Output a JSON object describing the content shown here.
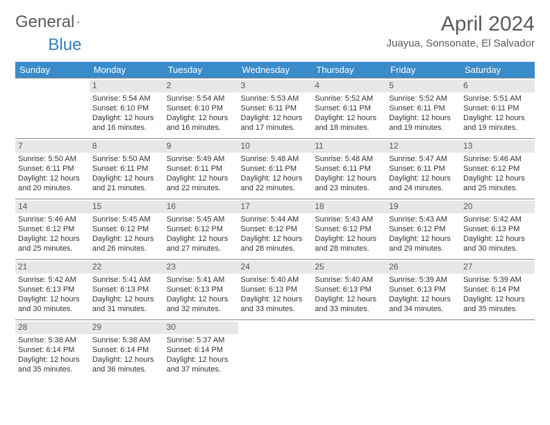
{
  "logo": {
    "word1": "General",
    "word2": "Blue"
  },
  "title": "April 2024",
  "subtitle": "Juayua, Sonsonate, El Salvador",
  "colors": {
    "header_bg": "#3a8bc9",
    "header_fg": "#ffffff",
    "daynum_bg": "#e7e7e7",
    "daynum_fg": "#555555",
    "row_border": "#888888",
    "body_text": "#333333",
    "title_color": "#5a5a5a",
    "logo_gray": "#5a5a5a",
    "logo_blue": "#2f7fbf"
  },
  "layout": {
    "columns": 7,
    "rows": 5,
    "start_weekday": "Sunday"
  },
  "weekdays": [
    "Sunday",
    "Monday",
    "Tuesday",
    "Wednesday",
    "Thursday",
    "Friday",
    "Saturday"
  ],
  "prefix": {
    "sunrise": "Sunrise: ",
    "sunset": "Sunset: ",
    "daylight": "Daylight: "
  },
  "days": [
    {
      "n": "",
      "sunrise": "",
      "sunset": "",
      "daylight1": "",
      "daylight2": ""
    },
    {
      "n": "1",
      "sunrise": "5:54 AM",
      "sunset": "6:10 PM",
      "daylight1": "12 hours",
      "daylight2": "and 16 minutes."
    },
    {
      "n": "2",
      "sunrise": "5:54 AM",
      "sunset": "6:10 PM",
      "daylight1": "12 hours",
      "daylight2": "and 16 minutes."
    },
    {
      "n": "3",
      "sunrise": "5:53 AM",
      "sunset": "6:11 PM",
      "daylight1": "12 hours",
      "daylight2": "and 17 minutes."
    },
    {
      "n": "4",
      "sunrise": "5:52 AM",
      "sunset": "6:11 PM",
      "daylight1": "12 hours",
      "daylight2": "and 18 minutes."
    },
    {
      "n": "5",
      "sunrise": "5:52 AM",
      "sunset": "6:11 PM",
      "daylight1": "12 hours",
      "daylight2": "and 19 minutes."
    },
    {
      "n": "6",
      "sunrise": "5:51 AM",
      "sunset": "6:11 PM",
      "daylight1": "12 hours",
      "daylight2": "and 19 minutes."
    },
    {
      "n": "7",
      "sunrise": "5:50 AM",
      "sunset": "6:11 PM",
      "daylight1": "12 hours",
      "daylight2": "and 20 minutes."
    },
    {
      "n": "8",
      "sunrise": "5:50 AM",
      "sunset": "6:11 PM",
      "daylight1": "12 hours",
      "daylight2": "and 21 minutes."
    },
    {
      "n": "9",
      "sunrise": "5:49 AM",
      "sunset": "6:11 PM",
      "daylight1": "12 hours",
      "daylight2": "and 22 minutes."
    },
    {
      "n": "10",
      "sunrise": "5:48 AM",
      "sunset": "6:11 PM",
      "daylight1": "12 hours",
      "daylight2": "and 22 minutes."
    },
    {
      "n": "11",
      "sunrise": "5:48 AM",
      "sunset": "6:11 PM",
      "daylight1": "12 hours",
      "daylight2": "and 23 minutes."
    },
    {
      "n": "12",
      "sunrise": "5:47 AM",
      "sunset": "6:11 PM",
      "daylight1": "12 hours",
      "daylight2": "and 24 minutes."
    },
    {
      "n": "13",
      "sunrise": "5:46 AM",
      "sunset": "6:12 PM",
      "daylight1": "12 hours",
      "daylight2": "and 25 minutes."
    },
    {
      "n": "14",
      "sunrise": "5:46 AM",
      "sunset": "6:12 PM",
      "daylight1": "12 hours",
      "daylight2": "and 25 minutes."
    },
    {
      "n": "15",
      "sunrise": "5:45 AM",
      "sunset": "6:12 PM",
      "daylight1": "12 hours",
      "daylight2": "and 26 minutes."
    },
    {
      "n": "16",
      "sunrise": "5:45 AM",
      "sunset": "6:12 PM",
      "daylight1": "12 hours",
      "daylight2": "and 27 minutes."
    },
    {
      "n": "17",
      "sunrise": "5:44 AM",
      "sunset": "6:12 PM",
      "daylight1": "12 hours",
      "daylight2": "and 28 minutes."
    },
    {
      "n": "18",
      "sunrise": "5:43 AM",
      "sunset": "6:12 PM",
      "daylight1": "12 hours",
      "daylight2": "and 28 minutes."
    },
    {
      "n": "19",
      "sunrise": "5:43 AM",
      "sunset": "6:12 PM",
      "daylight1": "12 hours",
      "daylight2": "and 29 minutes."
    },
    {
      "n": "20",
      "sunrise": "5:42 AM",
      "sunset": "6:13 PM",
      "daylight1": "12 hours",
      "daylight2": "and 30 minutes."
    },
    {
      "n": "21",
      "sunrise": "5:42 AM",
      "sunset": "6:13 PM",
      "daylight1": "12 hours",
      "daylight2": "and 30 minutes."
    },
    {
      "n": "22",
      "sunrise": "5:41 AM",
      "sunset": "6:13 PM",
      "daylight1": "12 hours",
      "daylight2": "and 31 minutes."
    },
    {
      "n": "23",
      "sunrise": "5:41 AM",
      "sunset": "6:13 PM",
      "daylight1": "12 hours",
      "daylight2": "and 32 minutes."
    },
    {
      "n": "24",
      "sunrise": "5:40 AM",
      "sunset": "6:13 PM",
      "daylight1": "12 hours",
      "daylight2": "and 33 minutes."
    },
    {
      "n": "25",
      "sunrise": "5:40 AM",
      "sunset": "6:13 PM",
      "daylight1": "12 hours",
      "daylight2": "and 33 minutes."
    },
    {
      "n": "26",
      "sunrise": "5:39 AM",
      "sunset": "6:13 PM",
      "daylight1": "12 hours",
      "daylight2": "and 34 minutes."
    },
    {
      "n": "27",
      "sunrise": "5:39 AM",
      "sunset": "6:14 PM",
      "daylight1": "12 hours",
      "daylight2": "and 35 minutes."
    },
    {
      "n": "28",
      "sunrise": "5:38 AM",
      "sunset": "6:14 PM",
      "daylight1": "12 hours",
      "daylight2": "and 35 minutes."
    },
    {
      "n": "29",
      "sunrise": "5:38 AM",
      "sunset": "6:14 PM",
      "daylight1": "12 hours",
      "daylight2": "and 36 minutes."
    },
    {
      "n": "30",
      "sunrise": "5:37 AM",
      "sunset": "6:14 PM",
      "daylight1": "12 hours",
      "daylight2": "and 37 minutes."
    },
    {
      "n": "",
      "sunrise": "",
      "sunset": "",
      "daylight1": "",
      "daylight2": ""
    },
    {
      "n": "",
      "sunrise": "",
      "sunset": "",
      "daylight1": "",
      "daylight2": ""
    },
    {
      "n": "",
      "sunrise": "",
      "sunset": "",
      "daylight1": "",
      "daylight2": ""
    },
    {
      "n": "",
      "sunrise": "",
      "sunset": "",
      "daylight1": "",
      "daylight2": ""
    }
  ]
}
